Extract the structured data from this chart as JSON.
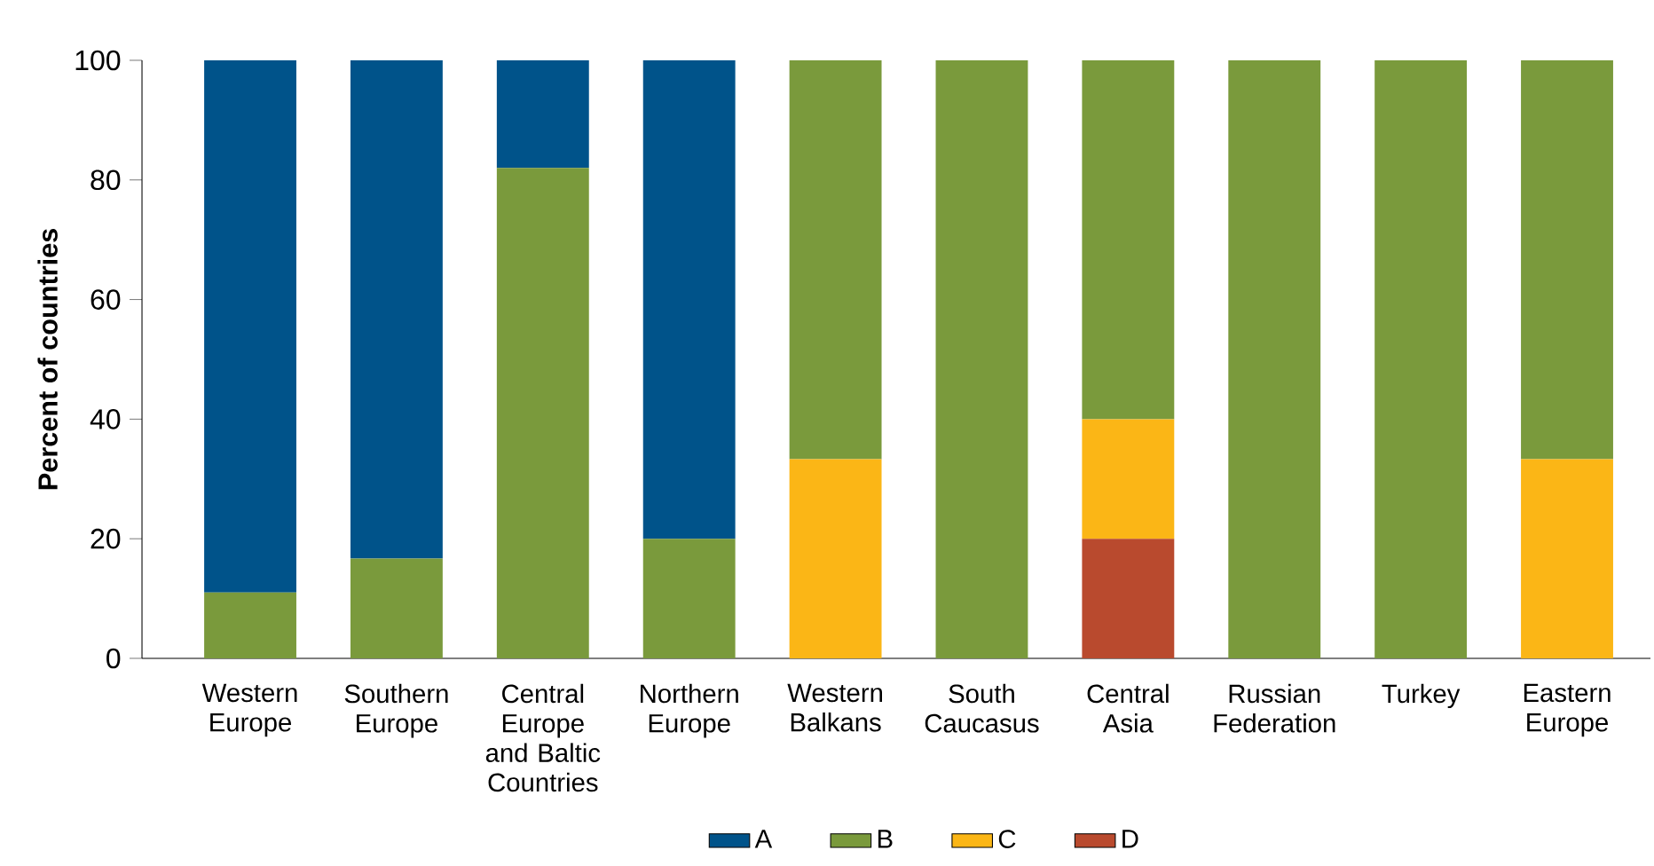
{
  "chart_data": {
    "type": "bar",
    "stacked": true,
    "ylabel": "Percent of countries",
    "categories": [
      "Western Europe",
      "Southern Europe",
      "Central Europe and Baltic Countries",
      "Northern Europe",
      "Western Balkans",
      "South Caucasus",
      "Central Asia",
      "Russian Federation",
      "Turkey",
      "Eastern Europe"
    ],
    "series": [
      {
        "name": "D",
        "color": "#b94a2e",
        "values": [
          0,
          0,
          0,
          0,
          0,
          0,
          20,
          0,
          0,
          0
        ]
      },
      {
        "name": "C",
        "color": "#fbb616",
        "values": [
          0,
          0,
          0,
          0,
          33.3,
          0,
          20,
          0,
          0,
          33.3
        ]
      },
      {
        "name": "B",
        "color": "#7a9a3c",
        "values": [
          11,
          16.7,
          82,
          20,
          66.7,
          100,
          60,
          100,
          100,
          66.7
        ]
      },
      {
        "name": "A",
        "color": "#00538a",
        "values": [
          89,
          83.3,
          18,
          80,
          0,
          0,
          0,
          0,
          0,
          0
        ]
      }
    ],
    "ylim": [
      0,
      100
    ],
    "yticks": [
      0,
      20,
      40,
      60,
      80,
      100
    ],
    "legend": "bottom"
  }
}
